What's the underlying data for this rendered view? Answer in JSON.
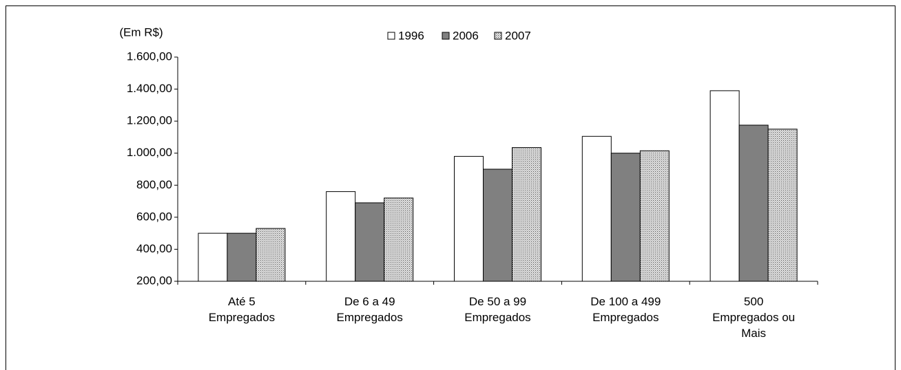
{
  "chart_data": {
    "type": "bar",
    "y_label": "(Em R$)",
    "categories": [
      "Até 5\nEmpregados",
      "De 6 a 49\nEmpregados",
      "De 50 a 99\nEmpregados",
      "De 100 a 499\nEmpregados",
      "500\nEmpregados ou\nMais"
    ],
    "series": [
      {
        "name": "1996",
        "color": "#ffffff",
        "values": [
          500,
          760,
          980,
          1105,
          1390
        ]
      },
      {
        "name": "2006",
        "color": "#808080",
        "values": [
          500,
          690,
          900,
          1000,
          1175
        ]
      },
      {
        "name": "2007",
        "color": "#c0c0c0",
        "pattern": "dots",
        "values": [
          530,
          720,
          1035,
          1015,
          1150
        ]
      }
    ],
    "ylim": [
      200,
      1600
    ],
    "yticks": [
      {
        "value": 200,
        "label": "200,00"
      },
      {
        "value": 400,
        "label": "400,00"
      },
      {
        "value": 600,
        "label": "600,00"
      },
      {
        "value": 800,
        "label": "800,00"
      },
      {
        "value": 1000,
        "label": "1.000,00"
      },
      {
        "value": 1200,
        "label": "1.200,00"
      },
      {
        "value": 1400,
        "label": "1.400,00"
      },
      {
        "value": 1600,
        "label": "1.600,00"
      }
    ],
    "grid": false,
    "legend": "top"
  }
}
